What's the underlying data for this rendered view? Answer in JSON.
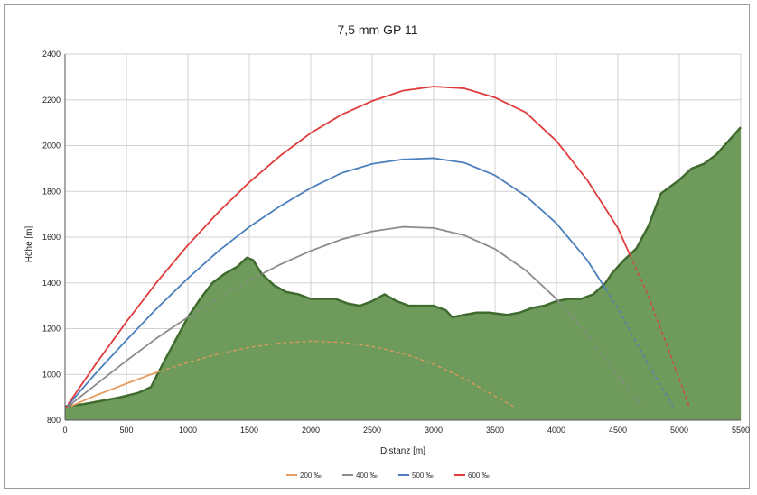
{
  "chart_data": {
    "type": "line",
    "title": "7,5 mm GP 11",
    "xlabel": "Distanz [m]",
    "ylabel": "Höhe [m]",
    "xlim": [
      0,
      5500
    ],
    "ylim": [
      800,
      2400
    ],
    "xticks": [
      0,
      500,
      1000,
      1500,
      2000,
      2500,
      3000,
      3500,
      4000,
      4500,
      5000,
      5500
    ],
    "yticks": [
      800,
      1000,
      1200,
      1400,
      1600,
      1800,
      2000,
      2200,
      2400
    ],
    "grid": true,
    "legend_position": "bottom",
    "terrain": {
      "fill_color": "#6e9a5c",
      "line_color": "#3f6b2f",
      "x": [
        0,
        150,
        300,
        450,
        600,
        700,
        800,
        900,
        1000,
        1100,
        1200,
        1300,
        1400,
        1480,
        1530,
        1600,
        1700,
        1800,
        1900,
        2000,
        2100,
        2200,
        2300,
        2400,
        2500,
        2600,
        2700,
        2800,
        2900,
        3000,
        3100,
        3150,
        3250,
        3350,
        3450,
        3600,
        3700,
        3800,
        3900,
        4000,
        4100,
        4200,
        4300,
        4400,
        4450,
        4550,
        4650,
        4750,
        4850,
        5000,
        5100,
        5200,
        5300,
        5400,
        5500
      ],
      "y": [
        860,
        870,
        885,
        900,
        920,
        945,
        1050,
        1150,
        1250,
        1330,
        1400,
        1440,
        1470,
        1510,
        1500,
        1440,
        1390,
        1360,
        1350,
        1330,
        1330,
        1330,
        1310,
        1300,
        1320,
        1350,
        1320,
        1300,
        1300,
        1300,
        1280,
        1250,
        1260,
        1270,
        1270,
        1260,
        1270,
        1290,
        1300,
        1320,
        1330,
        1330,
        1350,
        1400,
        1440,
        1500,
        1550,
        1650,
        1790,
        1850,
        1900,
        1920,
        1960,
        2020,
        2080
      ]
    },
    "series": [
      {
        "name": "200 ‰",
        "color": "#e89b5e",
        "x": [
          0,
          250,
          500,
          750,
          1000,
          1250,
          1500,
          1750,
          2000,
          2250,
          2500,
          2750,
          3000,
          3250,
          3500,
          3650
        ],
        "y": [
          850,
          908,
          960,
          1010,
          1052,
          1090,
          1118,
          1137,
          1145,
          1140,
          1122,
          1092,
          1045,
          982,
          905,
          860
        ]
      },
      {
        "name": "400 ‰",
        "color": "#8c8c8c",
        "x": [
          0,
          250,
          500,
          750,
          1000,
          1250,
          1500,
          1750,
          2000,
          2250,
          2500,
          2750,
          3000,
          3250,
          3500,
          3750,
          4000,
          4250,
          4500,
          4700
        ],
        "y": [
          850,
          955,
          1060,
          1160,
          1250,
          1335,
          1410,
          1480,
          1540,
          1590,
          1625,
          1645,
          1640,
          1608,
          1548,
          1455,
          1330,
          1175,
          990,
          860
        ]
      },
      {
        "name": "500 ‰",
        "color": "#4c7fbd",
        "x": [
          0,
          250,
          500,
          750,
          1000,
          1250,
          1500,
          1750,
          2000,
          2250,
          2500,
          2750,
          3000,
          3250,
          3500,
          3750,
          4000,
          4250,
          4500,
          4750,
          4950
        ],
        "y": [
          850,
          1005,
          1150,
          1290,
          1420,
          1540,
          1645,
          1735,
          1815,
          1880,
          1920,
          1940,
          1945,
          1925,
          1870,
          1780,
          1660,
          1500,
          1290,
          1040,
          860
        ]
      },
      {
        "name": "600 ‰",
        "color": "#e03c3c",
        "x": [
          0,
          250,
          500,
          750,
          1000,
          1250,
          1500,
          1750,
          2000,
          2250,
          2500,
          2750,
          3000,
          3250,
          3500,
          3750,
          4000,
          4250,
          4500,
          4750,
          5000,
          5080
        ],
        "y": [
          850,
          1045,
          1230,
          1405,
          1565,
          1710,
          1840,
          1955,
          2055,
          2135,
          2195,
          2240,
          2258,
          2250,
          2210,
          2145,
          2020,
          1850,
          1640,
          1340,
          980,
          860
        ]
      }
    ]
  }
}
